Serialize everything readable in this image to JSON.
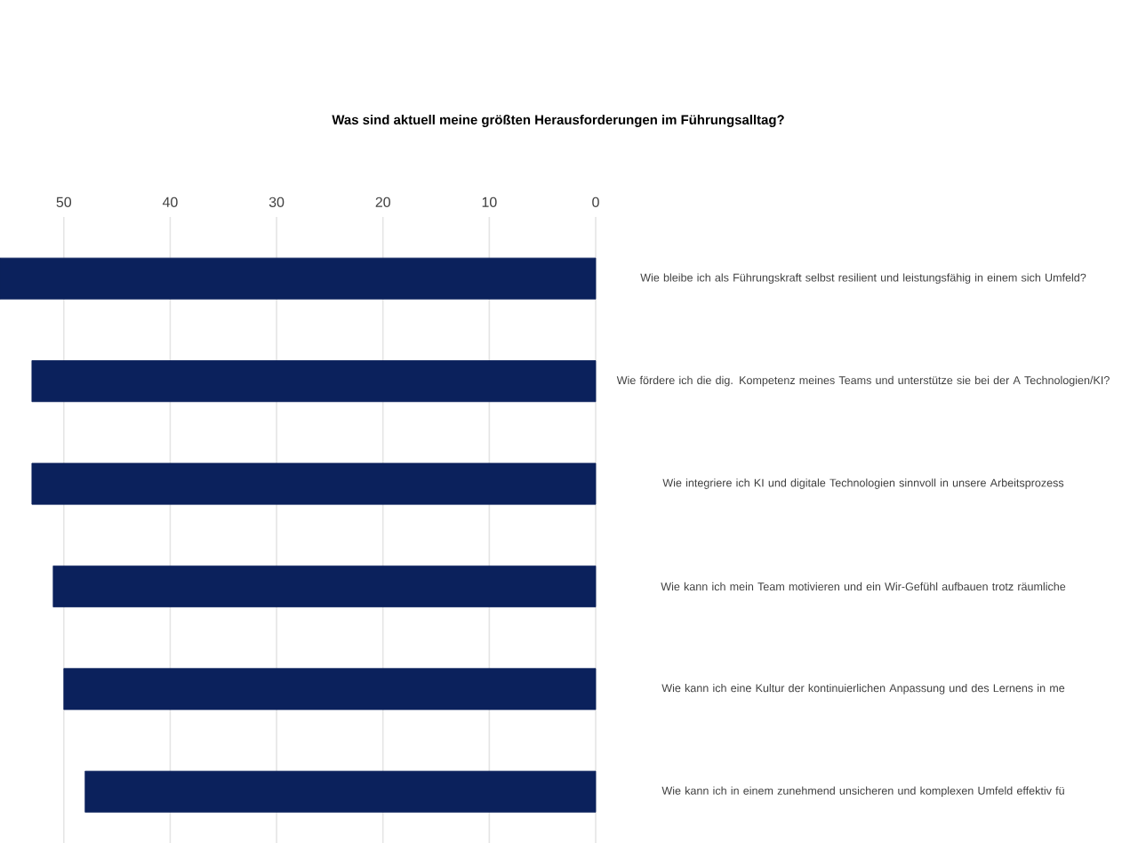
{
  "chart_data": {
    "type": "bar",
    "orientation": "horizontal",
    "title": "Was sind aktuell meine größten Herausforderungen im Führungsalltag?",
    "categories": [
      "Wie bleibe ich als Führungskraft selbst resilient und leistungsfähig in einem sich Umfeld?",
      "Wie fördere ich die dig. Kompetenz meines Teams und unterstütze sie bei der A Technologien/KI?",
      "Wie integriere ich KI und digitale Technologien sinnvoll in unsere Arbeitsprozess",
      "Wie kann ich mein Team motivieren und ein Wir-Gefühl aufbauen trotz räumliche",
      "Wie kann ich eine Kultur der kontinuierlichen Anpassung und des Lernens in me",
      "Wie kann ich in einem zunehmend unsicheren und komplexen Umfeld effektiv fü"
    ],
    "values": [
      56,
      53,
      53,
      51,
      50,
      48
    ],
    "color": "#0b215c",
    "xlim": [
      56,
      0
    ],
    "xticks": [
      50,
      40,
      30,
      20,
      10,
      0
    ],
    "grid": "x"
  }
}
